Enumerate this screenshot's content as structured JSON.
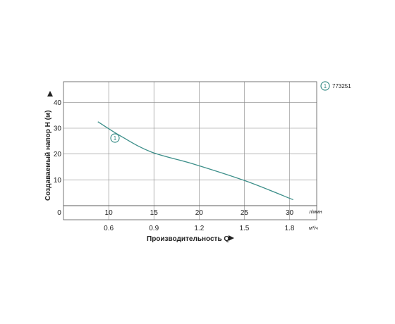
{
  "chart_data": {
    "type": "line",
    "xlabel": "Производительность Q",
    "ylabel": "Создаваемый напор H (м)",
    "x_unit_primary": "л/мин",
    "x_unit_secondary": "м³/ч",
    "x_ticks_primary": [
      "0",
      "10",
      "15",
      "20",
      "25",
      "30"
    ],
    "x_ticks_secondary": [
      "0.6",
      "0.9",
      "1.2",
      "1.5",
      "1.8"
    ],
    "y_ticks": [
      "10",
      "20",
      "30",
      "40"
    ],
    "xlim": [
      5,
      33
    ],
    "ylim": [
      0,
      48
    ],
    "grid": true,
    "legend_position": "top-right",
    "colors": {
      "series": "#3d8f8a",
      "grid": "#888888",
      "frame": "#555555",
      "text": "#222222"
    },
    "series": [
      {
        "name": "773251",
        "marker": "1",
        "x": [
          8.8,
          11.4,
          14.7,
          19.5,
          25.2,
          30.4
        ],
        "y": [
          32.5,
          26.8,
          20.8,
          16.0,
          9.5,
          2.3
        ]
      }
    ]
  }
}
